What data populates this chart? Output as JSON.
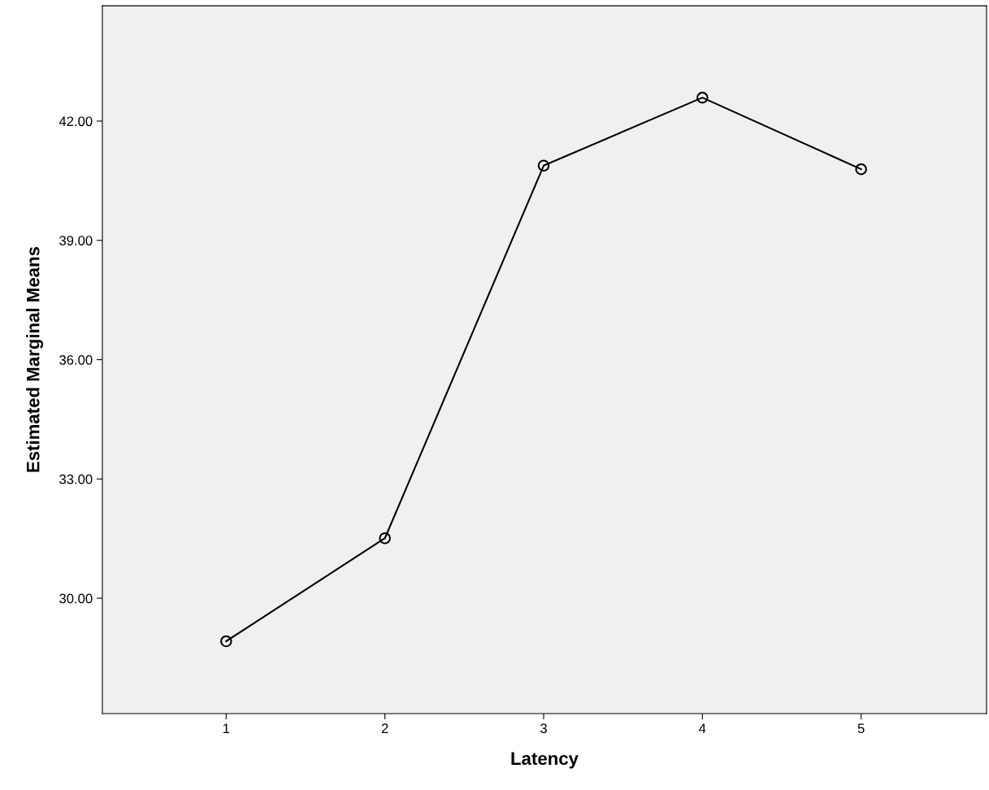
{
  "chart_data": {
    "type": "line",
    "xlabel": "Latency",
    "ylabel": "Estimated Marginal Means",
    "categories": [
      "1",
      "2",
      "3",
      "4",
      "5"
    ],
    "series": [
      {
        "color": "#000000",
        "values": [
          28.92,
          31.51,
          40.88,
          42.59,
          40.79
        ]
      }
    ],
    "ylim": [
      27.1,
      44.9
    ],
    "yticks": [
      {
        "value": 30,
        "label": "30.00"
      },
      {
        "value": 33,
        "label": "33.00"
      },
      {
        "value": 36,
        "label": "36.00"
      },
      {
        "value": 39,
        "label": "39.00"
      },
      {
        "value": 42,
        "label": "42.00"
      }
    ],
    "marker": "circle",
    "line_style": "solid",
    "grid": false,
    "legend": false
  }
}
